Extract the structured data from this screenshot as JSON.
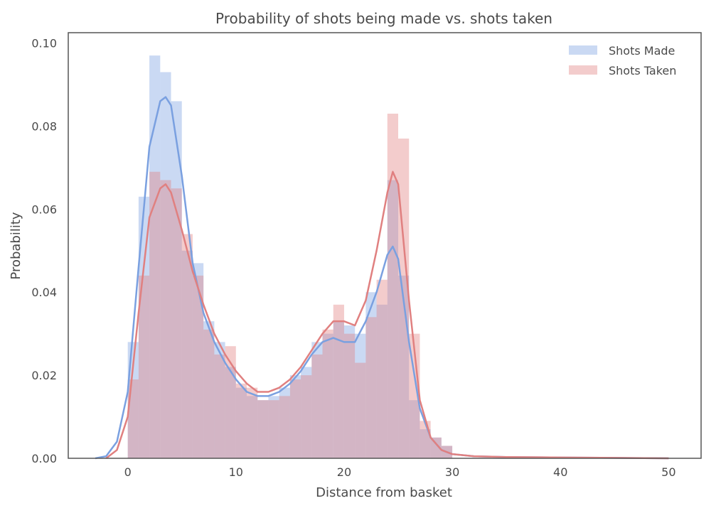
{
  "chart_data": {
    "type": "bar",
    "subtype": "histogram_with_kde",
    "title": "Probability of shots being made vs. shots taken",
    "xlabel": "Distance from basket",
    "ylabel": "Probability",
    "xlim": [
      -5.5,
      53
    ],
    "ylim": [
      0,
      0.1025
    ],
    "xticks": [
      0,
      10,
      20,
      30,
      40,
      50
    ],
    "xtick_labels": [
      "0",
      "10",
      "20",
      "30",
      "40",
      "50"
    ],
    "yticks": [
      0,
      0.02,
      0.04,
      0.06,
      0.08,
      0.1
    ],
    "ytick_labels": [
      "0.00",
      "0.02",
      "0.04",
      "0.06",
      "0.08",
      "0.10"
    ],
    "grid": false,
    "legend_position": "top-right",
    "bin_edges": [
      0,
      1,
      2,
      3,
      4,
      5,
      6,
      7,
      8,
      9,
      10,
      11,
      12,
      13,
      14,
      15,
      16,
      17,
      18,
      19,
      20,
      21,
      22,
      23,
      24,
      25,
      26,
      27,
      28,
      29,
      30
    ],
    "series": [
      {
        "name": "Shots Made",
        "color": "#7aa0e0",
        "histogram": [
          0.028,
          0.063,
          0.097,
          0.093,
          0.086,
          0.05,
          0.047,
          0.033,
          0.028,
          0.022,
          0.017,
          0.015,
          0.014,
          0.015,
          0.017,
          0.02,
          0.022,
          0.028,
          0.03,
          0.033,
          0.032,
          0.03,
          0.04,
          0.037,
          0.067,
          0.044,
          0.014,
          0.007,
          0.005,
          0.003
        ],
        "kde_x": [
          -3,
          -2,
          -1,
          0,
          1,
          2,
          3,
          3.5,
          4,
          5,
          6,
          7,
          8,
          9,
          10,
          11,
          12,
          13,
          14,
          15,
          16,
          17,
          18,
          19,
          20,
          21,
          22,
          23,
          24,
          24.5,
          25,
          26,
          27,
          28,
          29,
          30,
          32,
          35,
          40,
          45,
          50
        ],
        "kde_y": [
          0,
          0.0005,
          0.004,
          0.016,
          0.046,
          0.075,
          0.086,
          0.087,
          0.085,
          0.068,
          0.047,
          0.035,
          0.028,
          0.023,
          0.019,
          0.016,
          0.015,
          0.015,
          0.016,
          0.018,
          0.021,
          0.025,
          0.028,
          0.029,
          0.028,
          0.028,
          0.033,
          0.04,
          0.049,
          0.051,
          0.048,
          0.028,
          0.012,
          0.005,
          0.002,
          0.001,
          0.0005,
          0.0003,
          0.0002,
          0.0001,
          0
        ]
      },
      {
        "name": "Shots Taken",
        "color": "#e08080",
        "histogram": [
          0.019,
          0.044,
          0.069,
          0.067,
          0.065,
          0.054,
          0.044,
          0.031,
          0.025,
          0.027,
          0.018,
          0.017,
          0.014,
          0.014,
          0.015,
          0.019,
          0.02,
          0.025,
          0.031,
          0.037,
          0.03,
          0.023,
          0.034,
          0.043,
          0.083,
          0.077,
          0.03,
          0.009,
          0.005,
          0.003
        ],
        "kde_x": [
          -2,
          -1,
          0,
          1,
          2,
          3,
          3.5,
          4,
          5,
          6,
          7,
          8,
          9,
          10,
          11,
          12,
          13,
          14,
          15,
          16,
          17,
          18,
          19,
          20,
          21,
          22,
          23,
          24,
          24.5,
          25,
          26,
          27,
          28,
          29,
          30,
          32,
          35,
          40,
          45,
          50
        ],
        "kde_y": [
          0,
          0.002,
          0.01,
          0.035,
          0.058,
          0.065,
          0.066,
          0.064,
          0.055,
          0.045,
          0.037,
          0.03,
          0.025,
          0.021,
          0.018,
          0.016,
          0.016,
          0.017,
          0.019,
          0.022,
          0.026,
          0.03,
          0.033,
          0.033,
          0.032,
          0.038,
          0.05,
          0.064,
          0.069,
          0.066,
          0.038,
          0.014,
          0.005,
          0.002,
          0.001,
          0.0005,
          0.0003,
          0.0002,
          0.0001,
          0
        ]
      }
    ]
  }
}
